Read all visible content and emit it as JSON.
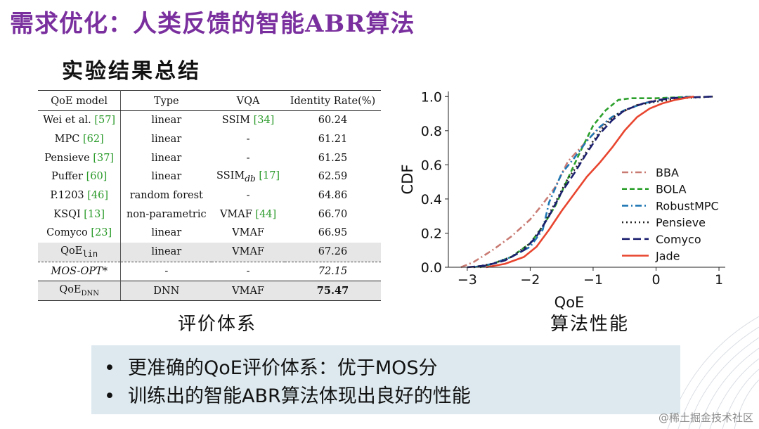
{
  "slide": {
    "title": "需求优化：人类反馈的智能ABR算法",
    "subtitle": "实验结果总结",
    "caption_left": "评价体系",
    "caption_right": "算法性能",
    "watermark": "@稀土掘金技术社区"
  },
  "table": {
    "headers": [
      "QoE model",
      "Type",
      "VQA",
      "Identity Rate(%)"
    ],
    "rows": [
      {
        "model": "Wei et al.",
        "model_ref": "[57]",
        "type": "linear",
        "vqa": "SSIM",
        "vqa_sub": "",
        "vqa_ref": "[34]",
        "rate": "60.24"
      },
      {
        "model": "MPC",
        "model_ref": "[62]",
        "type": "linear",
        "vqa": "-",
        "vqa_sub": "",
        "vqa_ref": "",
        "rate": "61.21"
      },
      {
        "model": "Pensieve",
        "model_ref": "[37]",
        "type": "linear",
        "vqa": "-",
        "vqa_sub": "",
        "vqa_ref": "",
        "rate": "61.25"
      },
      {
        "model": "Puffer",
        "model_ref": "[60]",
        "type": "linear",
        "vqa": "SSIM",
        "vqa_sub": "db",
        "vqa_ref": "[17]",
        "rate": "62.59"
      },
      {
        "model": "P.1203",
        "model_ref": "[46]",
        "type": "random forest",
        "vqa": "-",
        "vqa_sub": "",
        "vqa_ref": "",
        "rate": "64.86"
      },
      {
        "model": "KSQI",
        "model_ref": "[13]",
        "type": "non-parametric",
        "vqa": "VMAF",
        "vqa_sub": "",
        "vqa_ref": "[44]",
        "rate": "66.70"
      },
      {
        "model": "Comyco",
        "model_ref": "[23]",
        "type": "linear",
        "vqa": "VMAF",
        "vqa_sub": "",
        "vqa_ref": "",
        "rate": "66.95"
      },
      {
        "model": "QoE",
        "model_sub": "lin",
        "type": "linear",
        "vqa": "VMAF",
        "rate": "67.26"
      },
      {
        "model": "MOS-OPT*",
        "type": "-",
        "vqa": "-",
        "rate": "72.15"
      },
      {
        "model": "QoE",
        "model_sub": "DNN",
        "type": "DNN",
        "vqa": "VMAF",
        "rate": "75.47"
      }
    ]
  },
  "bullets": [
    "更准确的QoE评价体系：优于MOS分",
    "训练出的智能ABR算法体现出良好的性能"
  ],
  "chart_data": {
    "type": "line",
    "xlabel": "QoE",
    "ylabel": "CDF",
    "xlim": [
      -3.3,
      1.1
    ],
    "ylim": [
      0,
      1.03
    ],
    "xticks": [
      -3,
      -2,
      -1,
      0,
      1
    ],
    "yticks": [
      0.0,
      0.2,
      0.4,
      0.6,
      0.8,
      1.0
    ],
    "xtick_labels": [
      "−3",
      "−2",
      "−1",
      "0",
      "1"
    ],
    "ytick_labels": [
      "0.0",
      "0.2",
      "0.4",
      "0.6",
      "0.8",
      "1.0"
    ],
    "legend_position": "lower-right",
    "series": [
      {
        "name": "BBA",
        "color": "#c97b73",
        "dash": "dashdot",
        "x": [
          -3.1,
          -2.9,
          -2.6,
          -2.3,
          -2.0,
          -1.8,
          -1.6,
          -1.4,
          -1.2,
          -1.0,
          -0.8,
          -0.6,
          -0.3,
          0.0,
          0.5
        ],
        "y": [
          0.0,
          0.03,
          0.1,
          0.18,
          0.28,
          0.37,
          0.47,
          0.62,
          0.7,
          0.78,
          0.85,
          0.9,
          0.95,
          0.98,
          1.0
        ]
      },
      {
        "name": "BOLA",
        "color": "#2ca02c",
        "dash": "dashed",
        "x": [
          -2.8,
          -2.6,
          -2.3,
          -2.0,
          -1.8,
          -1.6,
          -1.4,
          -1.2,
          -1.0,
          -0.8,
          -0.6,
          -0.4,
          0.0,
          0.6
        ],
        "y": [
          0.0,
          0.02,
          0.06,
          0.14,
          0.24,
          0.36,
          0.52,
          0.68,
          0.83,
          0.92,
          0.98,
          0.99,
          0.99,
          1.0
        ]
      },
      {
        "name": "RobustMPC",
        "color": "#1f77b4",
        "dash": "dashdot",
        "x": [
          -2.9,
          -2.6,
          -2.3,
          -2.0,
          -1.8,
          -1.7,
          -1.5,
          -1.3,
          -1.1,
          -0.9,
          -0.7,
          -0.5,
          -0.2,
          0.2,
          0.6
        ],
        "y": [
          0.0,
          0.02,
          0.06,
          0.12,
          0.22,
          0.38,
          0.55,
          0.64,
          0.74,
          0.82,
          0.88,
          0.92,
          0.96,
          0.99,
          1.0
        ]
      },
      {
        "name": "Pensieve",
        "color": "#222222",
        "dash": "dotted",
        "x": [
          -2.9,
          -2.6,
          -2.3,
          -2.0,
          -1.8,
          -1.6,
          -1.4,
          -1.2,
          -1.0,
          -0.8,
          -0.6,
          -0.3,
          0.0,
          0.4,
          0.9
        ],
        "y": [
          0.0,
          0.02,
          0.06,
          0.14,
          0.24,
          0.38,
          0.52,
          0.62,
          0.74,
          0.84,
          0.9,
          0.95,
          0.97,
          0.99,
          1.0
        ]
      },
      {
        "name": "Comyco",
        "color": "#1b1f6e",
        "dash": "longdash",
        "x": [
          -3.0,
          -2.7,
          -2.4,
          -2.1,
          -1.9,
          -1.7,
          -1.5,
          -1.3,
          -1.1,
          -0.9,
          -0.7,
          -0.5,
          -0.2,
          0.2,
          0.9
        ],
        "y": [
          0.0,
          0.01,
          0.04,
          0.1,
          0.18,
          0.3,
          0.44,
          0.55,
          0.67,
          0.78,
          0.86,
          0.92,
          0.96,
          0.99,
          1.0
        ]
      },
      {
        "name": "Jade",
        "color": "#e8452f",
        "dash": "solid",
        "x": [
          -2.7,
          -2.4,
          -2.1,
          -1.9,
          -1.7,
          -1.5,
          -1.3,
          -1.1,
          -0.9,
          -0.7,
          -0.5,
          -0.3,
          -0.1,
          0.1,
          0.3,
          0.6
        ],
        "y": [
          0.0,
          0.02,
          0.06,
          0.12,
          0.22,
          0.33,
          0.43,
          0.53,
          0.61,
          0.7,
          0.8,
          0.88,
          0.93,
          0.96,
          0.98,
          1.0
        ]
      }
    ]
  }
}
